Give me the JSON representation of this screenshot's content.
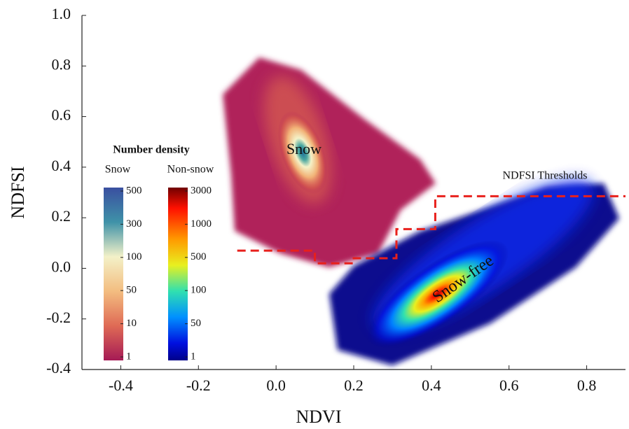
{
  "chart_data": {
    "type": "density-scatter",
    "x_label": "NDVI",
    "y_label": "NDFSI",
    "xlim": [
      -0.5,
      0.9
    ],
    "ylim": [
      -0.4,
      1.0
    ],
    "xticks": [
      -0.4,
      -0.2,
      {
        "value": 0,
        "label": "0.0"
      },
      0.2,
      0.4,
      0.6,
      0.8
    ],
    "yticks": [
      -0.4,
      -0.2,
      {
        "value": 0,
        "label": "0.0"
      },
      0.2,
      0.4,
      0.6,
      0.8,
      {
        "value": 1,
        "label": "1.0"
      }
    ],
    "series": [
      {
        "name": "NDFSI Thresholds",
        "color": "#e8201c",
        "x": [
          -0.1,
          0.1,
          0.1,
          0.2,
          0.2,
          0.31,
          0.31,
          0.41,
          0.41,
          0.9
        ],
        "y": [
          0.07,
          0.07,
          0.02,
          0.02,
          0.04,
          0.04,
          0.155,
          0.155,
          0.285,
          0.285
        ]
      }
    ],
    "annotations": [
      "Snow",
      "Snow-free"
    ],
    "colorbar_title": "Number density",
    "colorbars": [
      {
        "name": "Snow",
        "ticks": [
          1,
          10,
          50,
          100,
          300,
          500
        ]
      },
      {
        "name": "Non-snow",
        "ticks": [
          1,
          50,
          100,
          500,
          1000,
          3000
        ]
      }
    ]
  }
}
